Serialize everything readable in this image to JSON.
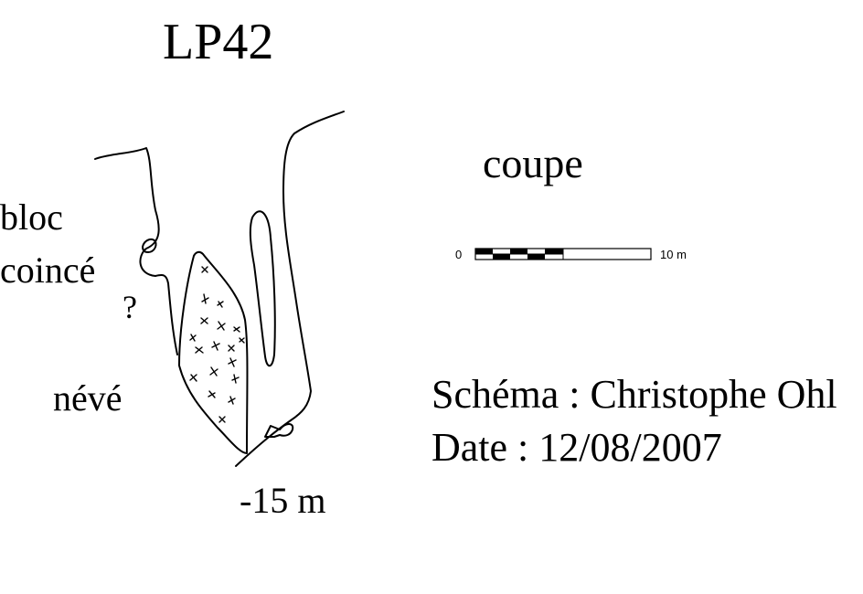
{
  "title": "LP42",
  "view_label": "coupe",
  "labels": {
    "bloc": "bloc",
    "coince": "coincé",
    "question": "?",
    "neve": "névé",
    "depth": "-15 m"
  },
  "scale": {
    "start_label": "0",
    "end_label": "10 m"
  },
  "credits": {
    "author": "Schéma : Christophe Ohl",
    "date": "Date : 12/08/2007"
  },
  "colors": {
    "ink": "#000000",
    "background": "#ffffff"
  }
}
